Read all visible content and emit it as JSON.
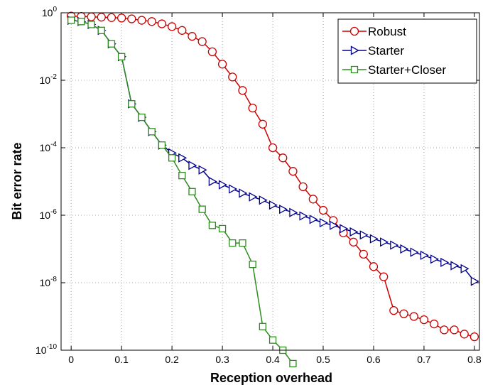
{
  "chart_data": {
    "type": "line",
    "title": "",
    "xlabel": "Reception overhead",
    "ylabel": "Bit error rate",
    "xlim": [
      -0.02,
      0.81
    ],
    "ylim_log10": [
      -10,
      0
    ],
    "y_scale": "log",
    "grid": "dotted",
    "legend_position": "top-right",
    "x_ticks": [
      0,
      0.1,
      0.2,
      0.3,
      0.4,
      0.5,
      0.6,
      0.7,
      0.8
    ],
    "x_tick_labels": [
      "0",
      "0.1",
      "0.2",
      "0.3",
      "0.4",
      "0.5",
      "0.6",
      "0.7",
      "0.8"
    ],
    "y_ticks_log10": [
      0,
      -2,
      -4,
      -6,
      -8,
      -10
    ],
    "y_tick_labels": [
      {
        "base": "10",
        "exp": "0"
      },
      {
        "base": "10",
        "exp": "-2"
      },
      {
        "base": "10",
        "exp": "-4"
      },
      {
        "base": "10",
        "exp": "-6"
      },
      {
        "base": "10",
        "exp": "-8"
      },
      {
        "base": "10",
        "exp": "-10"
      }
    ],
    "series": [
      {
        "name": "Robust",
        "color": "#cc0000",
        "marker": "circle",
        "x": [
          0,
          0.02,
          0.04,
          0.06,
          0.08,
          0.1,
          0.12,
          0.14,
          0.16,
          0.18,
          0.2,
          0.22,
          0.24,
          0.26,
          0.28,
          0.3,
          0.32,
          0.34,
          0.36,
          0.38,
          0.4,
          0.42,
          0.44,
          0.46,
          0.48,
          0.5,
          0.52,
          0.54,
          0.56,
          0.58,
          0.6,
          0.62,
          0.64,
          0.66,
          0.68,
          0.7,
          0.72,
          0.74,
          0.76,
          0.78,
          0.8
        ],
        "y": [
          0.8,
          0.78,
          0.76,
          0.74,
          0.72,
          0.7,
          0.66,
          0.6,
          0.55,
          0.47,
          0.39,
          0.3,
          0.2,
          0.14,
          0.07,
          0.03,
          0.0125,
          0.005,
          0.0015,
          0.0005,
          0.0001,
          5e-05,
          2e-05,
          7e-06,
          3e-06,
          1.4e-06,
          7e-07,
          3e-07,
          1.6e-07,
          7e-08,
          3e-08,
          1.5e-08,
          1.5e-09,
          1.2e-09,
          1e-09,
          8e-10,
          6e-10,
          4e-10,
          4e-10,
          3e-10,
          2.5e-10
        ]
      },
      {
        "name": "Starter",
        "color": "#00008b",
        "marker": "triangle-right",
        "x": [
          0,
          0.02,
          0.04,
          0.06,
          0.08,
          0.1,
          0.12,
          0.14,
          0.16,
          0.18,
          0.2,
          0.22,
          0.24,
          0.26,
          0.28,
          0.3,
          0.32,
          0.34,
          0.36,
          0.38,
          0.4,
          0.42,
          0.44,
          0.46,
          0.48,
          0.5,
          0.52,
          0.54,
          0.56,
          0.58,
          0.6,
          0.62,
          0.64,
          0.66,
          0.68,
          0.7,
          0.72,
          0.74,
          0.76,
          0.78,
          0.8
        ],
        "y": [
          0.6,
          0.55,
          0.45,
          0.3,
          0.12,
          0.05,
          0.002,
          0.0008,
          0.0003,
          0.00012,
          7e-05,
          5e-05,
          3e-05,
          2.2e-05,
          1e-05,
          8e-06,
          6e-06,
          4.5e-06,
          3.5e-06,
          2.8e-06,
          2e-06,
          1.5e-06,
          1.2e-06,
          9.5e-07,
          7.5e-07,
          6e-07,
          5e-07,
          4e-07,
          3.2e-07,
          2.6e-07,
          2e-07,
          1.6e-07,
          1.3e-07,
          1e-07,
          8e-08,
          6.5e-08,
          5e-08,
          4e-08,
          3.2e-08,
          2.6e-08,
          1.1e-08
        ]
      },
      {
        "name": "Starter+Closer",
        "color": "#2e8b1e",
        "marker": "square",
        "x": [
          0,
          0.02,
          0.04,
          0.06,
          0.08,
          0.1,
          0.12,
          0.14,
          0.16,
          0.18,
          0.2,
          0.22,
          0.24,
          0.26,
          0.28,
          0.3,
          0.32,
          0.34,
          0.36,
          0.38,
          0.4,
          0.42,
          0.44
        ],
        "y": [
          0.6,
          0.55,
          0.45,
          0.3,
          0.12,
          0.05,
          0.002,
          0.0008,
          0.0003,
          0.00012,
          5e-05,
          1.5e-05,
          5e-06,
          1.5e-06,
          5e-07,
          4e-07,
          1.5e-07,
          1.5e-07,
          3.5e-08,
          5e-10,
          2e-10,
          1e-10,
          4e-11
        ]
      }
    ]
  }
}
